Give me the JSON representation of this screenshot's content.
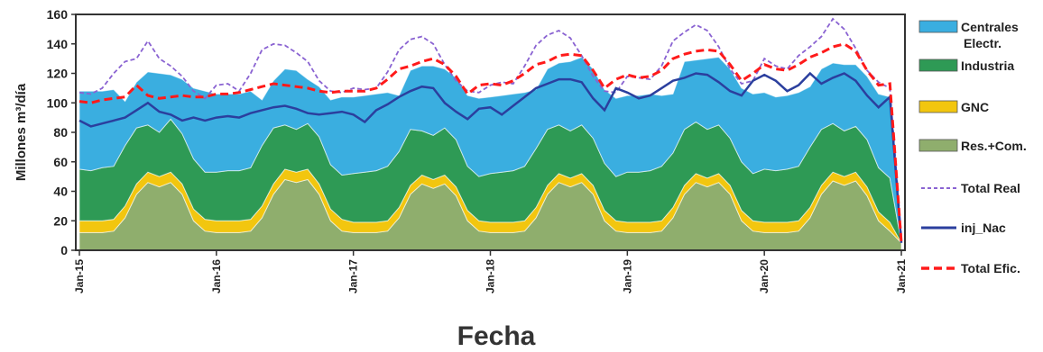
{
  "chart_data": {
    "type": "area",
    "xlabel": "Fecha",
    "ylabel": "Millones m³/día",
    "ylim": [
      0,
      160
    ],
    "yticks": [
      "0",
      "20",
      "40",
      "60",
      "80",
      "100",
      "120",
      "140",
      "160"
    ],
    "xticks": [
      "Jan-15",
      "Jan-16",
      "Jan-17",
      "Jan-18",
      "Jan-19",
      "Jan-20",
      "Jan-21"
    ],
    "grid": false,
    "legend_position": "right",
    "stacked_series": [
      {
        "name": "Res.+Com.",
        "color": "#8fae6d",
        "monthly_values": [
          12,
          12,
          12,
          13,
          22,
          38,
          46,
          43,
          46,
          38,
          20,
          13,
          12,
          12,
          12,
          13,
          22,
          38,
          48,
          46,
          48,
          38,
          20,
          13,
          12,
          12,
          12,
          13,
          22,
          38,
          45,
          42,
          45,
          37,
          20,
          13,
          12,
          12,
          12,
          13,
          22,
          38,
          46,
          43,
          46,
          38,
          20,
          13,
          12,
          12,
          12,
          13,
          22,
          38,
          46,
          43,
          46,
          38,
          20,
          13,
          12,
          12,
          12,
          13,
          22,
          38,
          47,
          44,
          47,
          37,
          20,
          13,
          5
        ]
      },
      {
        "name": "GNC",
        "color": "#f2c60f",
        "monthly_values": [
          8,
          8,
          8,
          8,
          8,
          7,
          7,
          7,
          7,
          7,
          8,
          8,
          8,
          8,
          8,
          8,
          8,
          7,
          7,
          7,
          7,
          7,
          8,
          8,
          7,
          7,
          7,
          7,
          7,
          6,
          6,
          6,
          6,
          6,
          7,
          7,
          7,
          7,
          7,
          7,
          7,
          6,
          6,
          6,
          6,
          6,
          7,
          7,
          7,
          7,
          7,
          7,
          7,
          6,
          6,
          6,
          6,
          6,
          7,
          7,
          7,
          7,
          7,
          7,
          7,
          6,
          6,
          6,
          6,
          6,
          6,
          6,
          0
        ]
      },
      {
        "name": "Industria",
        "color": "#2e9a55",
        "monthly_values": [
          35,
          34,
          36,
          36,
          41,
          38,
          32,
          30,
          36,
          34,
          34,
          32,
          33,
          34,
          34,
          35,
          41,
          38,
          30,
          29,
          31,
          32,
          30,
          30,
          33,
          34,
          35,
          37,
          38,
          38,
          30,
          30,
          32,
          32,
          30,
          30,
          33,
          34,
          35,
          37,
          40,
          38,
          33,
          32,
          33,
          32,
          32,
          30,
          34,
          34,
          35,
          37,
          37,
          38,
          35,
          33,
          33,
          32,
          33,
          32,
          36,
          35,
          36,
          37,
          41,
          38,
          33,
          31,
          31,
          32,
          30,
          30,
          0
        ]
      },
      {
        "name": "Centrales Electr.",
        "color": "#3aaee0",
        "monthly_values": [
          53,
          54,
          52,
          52,
          30,
          31,
          36,
          40,
          30,
          37,
          48,
          55,
          53,
          52,
          52,
          52,
          31,
          32,
          38,
          40,
          30,
          34,
          44,
          53,
          52,
          52,
          52,
          50,
          38,
          40,
          44,
          47,
          40,
          42,
          48,
          53,
          52,
          52,
          52,
          50,
          40,
          41,
          42,
          47,
          46,
          47,
          50,
          53,
          52,
          52,
          52,
          48,
          40,
          46,
          42,
          48,
          46,
          47,
          50,
          54,
          52,
          50,
          50,
          50,
          41,
          41,
          41,
          45,
          42,
          43,
          50,
          55,
          0
        ]
      }
    ],
    "line_series": [
      {
        "name": "Total Real",
        "color": "#8a63d2",
        "style": "dashed",
        "monthly_values": [
          107,
          106,
          110,
          120,
          128,
          130,
          142,
          130,
          125,
          118,
          108,
          103,
          112,
          113,
          108,
          120,
          136,
          140,
          139,
          134,
          128,
          115,
          108,
          107,
          110,
          109,
          110,
          121,
          136,
          143,
          145,
          140,
          126,
          115,
          108,
          107,
          112,
          114,
          113,
          125,
          139,
          146,
          149,
          144,
          132,
          118,
          108,
          107,
          118,
          117,
          116,
          125,
          142,
          148,
          153,
          149,
          138,
          123,
          113,
          115,
          130,
          125,
          123,
          132,
          138,
          145,
          157,
          150,
          137,
          122,
          114,
          110,
          10
        ]
      },
      {
        "name": "inj_Nac",
        "color": "#2b3f9e",
        "style": "solid",
        "monthly_values": [
          88,
          84,
          86,
          88,
          90,
          95,
          100,
          94,
          92,
          88,
          90,
          88,
          90,
          91,
          90,
          93,
          95,
          97,
          98,
          96,
          93,
          92,
          93,
          94,
          92,
          87,
          95,
          99,
          104,
          108,
          111,
          110,
          100,
          94,
          89,
          96,
          97,
          92,
          98,
          104,
          110,
          113,
          116,
          116,
          114,
          103,
          95,
          110,
          107,
          103,
          105,
          110,
          115,
          117,
          120,
          119,
          114,
          108,
          105,
          115,
          119,
          115,
          108,
          112,
          120,
          113,
          117,
          120,
          115,
          105,
          97,
          104,
          5
        ]
      },
      {
        "name": "Total Efic.",
        "color": "#ff1a1a",
        "style": "dashed",
        "monthly_values": [
          101,
          100,
          102,
          103,
          104,
          112,
          105,
          103,
          104,
          105,
          104,
          104,
          106,
          106,
          107,
          109,
          111,
          113,
          112,
          111,
          110,
          108,
          107,
          108,
          108,
          108,
          110,
          116,
          123,
          125,
          128,
          130,
          126,
          118,
          106,
          112,
          113,
          112,
          115,
          120,
          126,
          128,
          132,
          133,
          132,
          122,
          110,
          116,
          119,
          117,
          118,
          122,
          130,
          133,
          135,
          136,
          135,
          126,
          115,
          120,
          126,
          123,
          122,
          126,
          131,
          134,
          138,
          140,
          135,
          122,
          112,
          113,
          5
        ]
      }
    ],
    "legend": [
      {
        "label": "Centrales Electr.",
        "key": "area",
        "color": "#3aaee0"
      },
      {
        "label": "Industria",
        "key": "area",
        "color": "#2e9a55"
      },
      {
        "label": "GNC",
        "key": "area",
        "color": "#f2c60f"
      },
      {
        "label": "Res.+Com.",
        "key": "area",
        "color": "#8fae6d"
      },
      {
        "label": "Total Real",
        "key": "line-dashed",
        "color": "#8a63d2"
      },
      {
        "label": "inj_Nac",
        "key": "line-solid",
        "color": "#2b3f9e"
      },
      {
        "label": "Total Efic.",
        "key": "line-dashed-thick",
        "color": "#ff1a1a"
      }
    ]
  }
}
